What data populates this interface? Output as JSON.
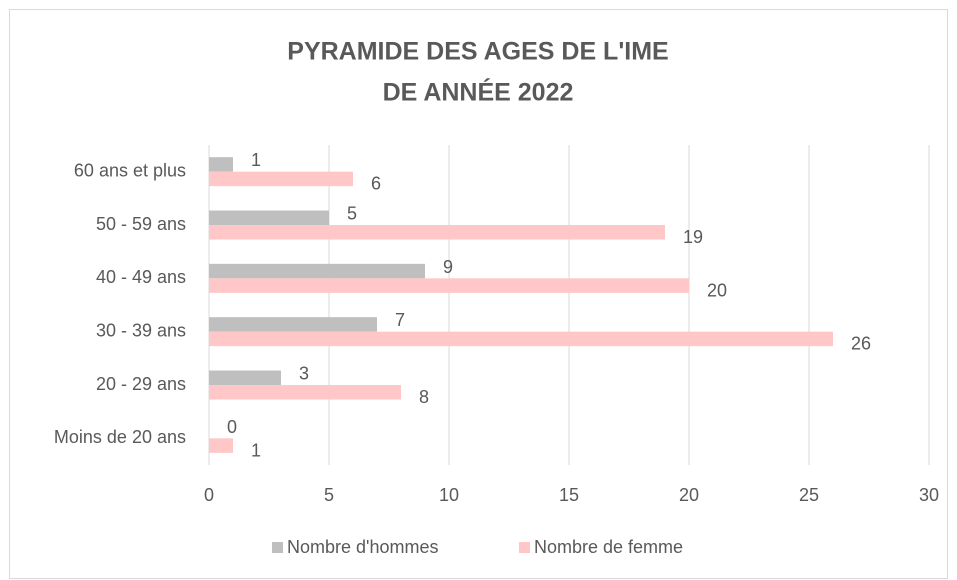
{
  "chart_data": {
    "type": "bar",
    "orientation": "horizontal",
    "title": [
      "PYRAMIDE DES AGES DE L'IME",
      "DE ANNÉE 2022"
    ],
    "categories": [
      "Moins de 20 ans",
      "20 - 29 ans",
      "30 - 39 ans",
      "40 - 49 ans",
      "50 - 59 ans",
      "60 ans et plus"
    ],
    "series": [
      {
        "name": "Nombre d'hommes",
        "color": "#bfbfbf",
        "values": [
          0,
          3,
          7,
          9,
          5,
          1
        ]
      },
      {
        "name": "Nombre de femme",
        "color": "#ffc7c7",
        "values": [
          1,
          8,
          26,
          20,
          19,
          6
        ]
      }
    ],
    "xlim": [
      0,
      30
    ],
    "xticks": [
      0,
      5,
      10,
      15,
      20,
      25,
      30
    ],
    "grid": true,
    "legend": "bottom"
  }
}
